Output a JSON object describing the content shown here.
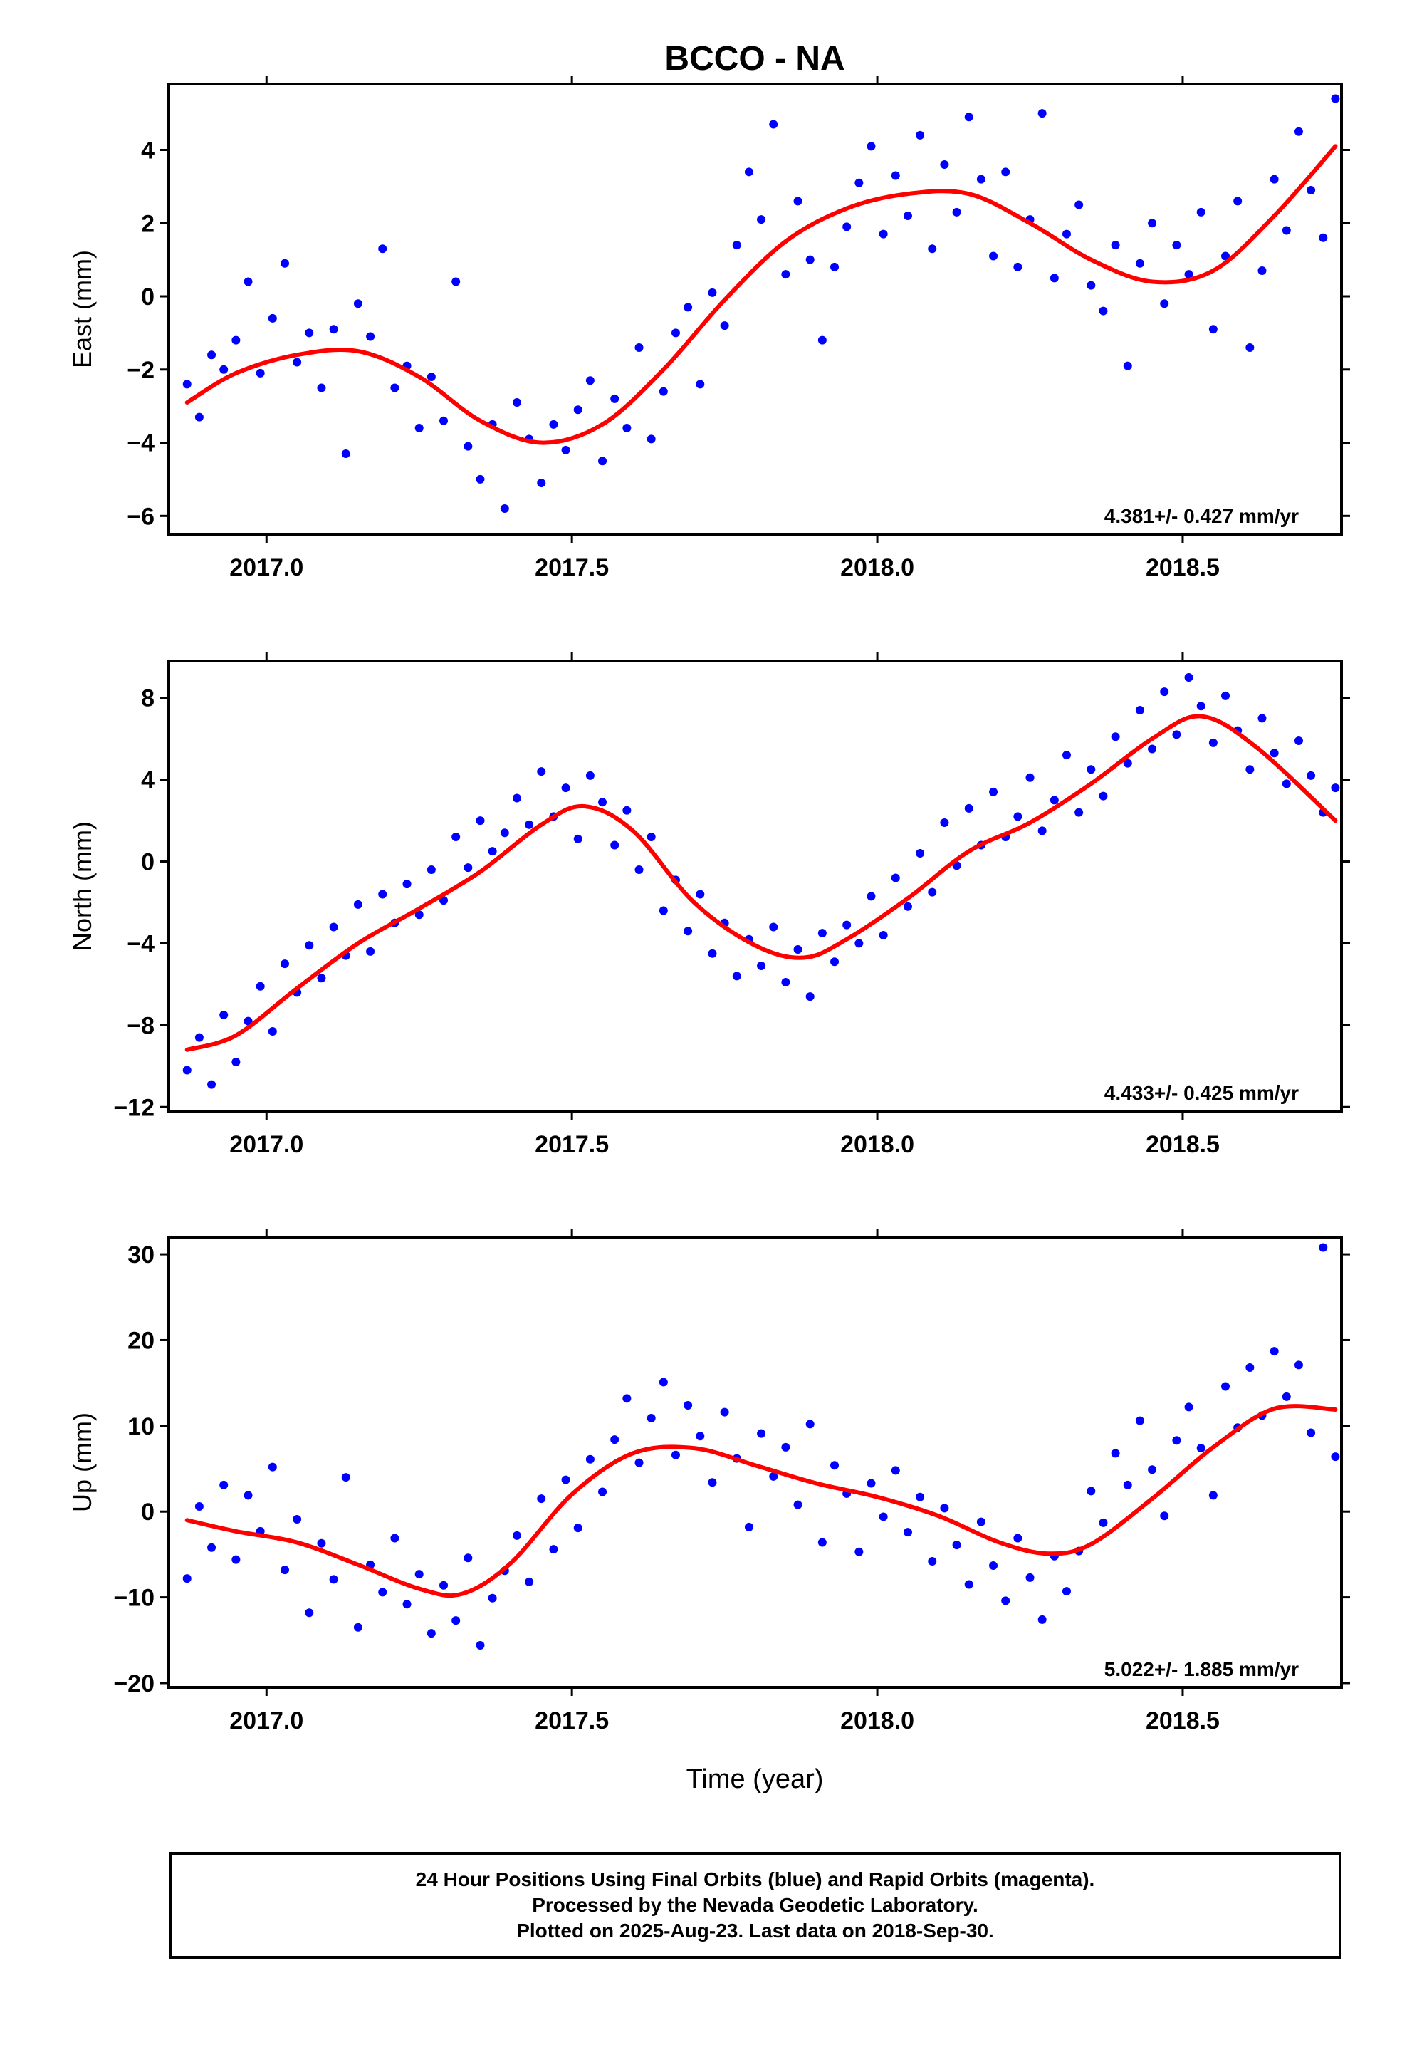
{
  "title": "BCCO - NA",
  "xlabel": "Time (year)",
  "colors": {
    "points": "#0000ff",
    "fit": "#ff0000",
    "axes": "#000000"
  },
  "footer": {
    "line1": "24 Hour Positions Using Final Orbits (blue) and Rapid Orbits (magenta).",
    "line2": "Processed by the Nevada Geodetic Laboratory.",
    "line3": "Plotted on 2025-Aug-23. Last data on 2018-Sep-30."
  },
  "chart_data": [
    {
      "type": "scatter",
      "ylabel": "East (mm)",
      "rate": "4.381+/- 0.427 mm/yr",
      "xlim": [
        2016.84,
        2018.76
      ],
      "ylim": [
        -6.5,
        5.8
      ],
      "xticks": [
        "2017.0",
        "2017.5",
        "2018.0",
        "2018.5"
      ],
      "yticks": [
        "4",
        "2",
        "0",
        "−2",
        "−4",
        "−6"
      ],
      "fit": {
        "name": "",
        "x": [
          2016.87,
          2016.95,
          2017.05,
          2017.15,
          2017.25,
          2017.35,
          2017.45,
          2017.55,
          2017.65,
          2017.75,
          2017.85,
          2017.95,
          2018.05,
          2018.15,
          2018.25,
          2018.35,
          2018.45,
          2018.55,
          2018.65,
          2018.75
        ],
        "y": [
          -2.9,
          -2.1,
          -1.6,
          -1.5,
          -2.2,
          -3.4,
          -4.0,
          -3.5,
          -2.0,
          -0.1,
          1.5,
          2.4,
          2.8,
          2.8,
          2.0,
          1.0,
          0.4,
          0.7,
          2.2,
          4.1
        ]
      },
      "points": {
        "name": "",
        "x": [
          2016.87,
          2016.89,
          2016.91,
          2016.93,
          2016.95,
          2016.97,
          2016.99,
          2017.01,
          2017.03,
          2017.05,
          2017.07,
          2017.09,
          2017.11,
          2017.13,
          2017.15,
          2017.17,
          2017.19,
          2017.21,
          2017.23,
          2017.25,
          2017.27,
          2017.29,
          2017.31,
          2017.33,
          2017.35,
          2017.37,
          2017.39,
          2017.41,
          2017.43,
          2017.45,
          2017.47,
          2017.49,
          2017.51,
          2017.53,
          2017.55,
          2017.57,
          2017.59,
          2017.61,
          2017.63,
          2017.65,
          2017.67,
          2017.69,
          2017.71,
          2017.73,
          2017.75,
          2017.77,
          2017.79,
          2017.81,
          2017.83,
          2017.85,
          2017.87,
          2017.89,
          2017.91,
          2017.93,
          2017.95,
          2017.97,
          2017.99,
          2018.01,
          2018.03,
          2018.05,
          2018.07,
          2018.09,
          2018.11,
          2018.13,
          2018.15,
          2018.17,
          2018.19,
          2018.21,
          2018.23,
          2018.25,
          2018.27,
          2018.29,
          2018.31,
          2018.33,
          2018.35,
          2018.37,
          2018.39,
          2018.41,
          2018.43,
          2018.45,
          2018.47,
          2018.49,
          2018.51,
          2018.53,
          2018.55,
          2018.57,
          2018.59,
          2018.61,
          2018.63,
          2018.65,
          2018.67,
          2018.69,
          2018.71,
          2018.73,
          2018.75
        ],
        "y": [
          -2.4,
          -3.3,
          -1.6,
          -2.0,
          -1.2,
          0.4,
          -2.1,
          -0.6,
          0.9,
          -1.8,
          -1.0,
          -2.5,
          -0.9,
          -4.3,
          -0.2,
          -1.1,
          1.3,
          -2.5,
          -1.9,
          -3.6,
          -2.2,
          -3.4,
          0.4,
          -4.1,
          -5.0,
          -3.5,
          -5.8,
          -2.9,
          -3.9,
          -5.1,
          -3.5,
          -4.2,
          -3.1,
          -2.3,
          -4.5,
          -2.8,
          -3.6,
          -1.4,
          -3.9,
          -2.6,
          -1.0,
          -0.3,
          -2.4,
          0.1,
          -0.8,
          1.4,
          3.4,
          2.1,
          4.7,
          0.6,
          2.6,
          1.0,
          -1.2,
          0.8,
          1.9,
          3.1,
          4.1,
          1.7,
          3.3,
          2.2,
          4.4,
          1.3,
          3.6,
          2.3,
          4.9,
          3.2,
          1.1,
          3.4,
          0.8,
          2.1,
          5.0,
          0.5,
          1.7,
          2.5,
          0.3,
          -0.4,
          1.4,
          -1.9,
          0.9,
          2.0,
          -0.2,
          1.4,
          0.6,
          2.3,
          -0.9,
          1.1,
          2.6,
          -1.4,
          0.7,
          3.2,
          1.8,
          4.5,
          2.9,
          1.6,
          5.4
        ]
      }
    },
    {
      "type": "scatter",
      "ylabel": "North (mm)",
      "rate": "4.433+/- 0.425 mm/yr",
      "xlim": [
        2016.84,
        2018.76
      ],
      "ylim": [
        -12.2,
        9.8
      ],
      "xticks": [
        "2017.0",
        "2017.5",
        "2018.0",
        "2018.5"
      ],
      "yticks": [
        "8",
        "4",
        "0",
        "−4",
        "−8",
        "−12"
      ],
      "fit": {
        "name": "",
        "x": [
          2016.87,
          2016.95,
          2017.05,
          2017.15,
          2017.25,
          2017.35,
          2017.45,
          2017.52,
          2017.6,
          2017.7,
          2017.8,
          2017.88,
          2017.95,
          2018.05,
          2018.15,
          2018.25,
          2018.35,
          2018.45,
          2018.53,
          2018.62,
          2018.75
        ],
        "y": [
          -9.2,
          -8.5,
          -6.2,
          -4.0,
          -2.3,
          -0.5,
          1.8,
          2.7,
          1.5,
          -2.0,
          -4.1,
          -4.7,
          -3.8,
          -1.8,
          0.5,
          1.9,
          3.8,
          6.0,
          7.1,
          5.6,
          2.0
        ]
      },
      "points": {
        "name": "",
        "x": [
          2016.87,
          2016.89,
          2016.91,
          2016.93,
          2016.95,
          2016.97,
          2016.99,
          2017.01,
          2017.03,
          2017.05,
          2017.07,
          2017.09,
          2017.11,
          2017.13,
          2017.15,
          2017.17,
          2017.19,
          2017.21,
          2017.23,
          2017.25,
          2017.27,
          2017.29,
          2017.31,
          2017.33,
          2017.35,
          2017.37,
          2017.39,
          2017.41,
          2017.43,
          2017.45,
          2017.47,
          2017.49,
          2017.51,
          2017.53,
          2017.55,
          2017.57,
          2017.59,
          2017.61,
          2017.63,
          2017.65,
          2017.67,
          2017.69,
          2017.71,
          2017.73,
          2017.75,
          2017.77,
          2017.79,
          2017.81,
          2017.83,
          2017.85,
          2017.87,
          2017.89,
          2017.91,
          2017.93,
          2017.95,
          2017.97,
          2017.99,
          2018.01,
          2018.03,
          2018.05,
          2018.07,
          2018.09,
          2018.11,
          2018.13,
          2018.15,
          2018.17,
          2018.19,
          2018.21,
          2018.23,
          2018.25,
          2018.27,
          2018.29,
          2018.31,
          2018.33,
          2018.35,
          2018.37,
          2018.39,
          2018.41,
          2018.43,
          2018.45,
          2018.47,
          2018.49,
          2018.51,
          2018.53,
          2018.55,
          2018.57,
          2018.59,
          2018.61,
          2018.63,
          2018.65,
          2018.67,
          2018.69,
          2018.71,
          2018.73,
          2018.75
        ],
        "y": [
          -10.2,
          -8.6,
          -10.9,
          -7.5,
          -9.8,
          -7.8,
          -6.1,
          -8.3,
          -5.0,
          -6.4,
          -4.1,
          -5.7,
          -3.2,
          -4.6,
          -2.1,
          -4.4,
          -1.6,
          -3.0,
          -1.1,
          -2.6,
          -0.4,
          -1.9,
          1.2,
          -0.3,
          2.0,
          0.5,
          1.4,
          3.1,
          1.8,
          4.4,
          2.2,
          3.6,
          1.1,
          4.2,
          2.9,
          0.8,
          2.5,
          -0.4,
          1.2,
          -2.4,
          -0.9,
          -3.4,
          -1.6,
          -4.5,
          -3.0,
          -5.6,
          -3.8,
          -5.1,
          -3.2,
          -5.9,
          -4.3,
          -6.6,
          -3.5,
          -4.9,
          -3.1,
          -4.0,
          -1.7,
          -3.6,
          -0.8,
          -2.2,
          0.4,
          -1.5,
          1.9,
          -0.2,
          2.6,
          0.8,
          3.4,
          1.2,
          2.2,
          4.1,
          1.5,
          3.0,
          5.2,
          2.4,
          4.5,
          3.2,
          6.1,
          4.8,
          7.4,
          5.5,
          8.3,
          6.2,
          9.0,
          7.6,
          5.8,
          8.1,
          6.4,
          4.5,
          7.0,
          5.3,
          3.8,
          5.9,
          4.2,
          2.4,
          3.6
        ]
      }
    },
    {
      "type": "scatter",
      "ylabel": "Up (mm)",
      "rate": "5.022+/- 1.885 mm/yr",
      "xlim": [
        2016.84,
        2018.76
      ],
      "ylim": [
        -20.5,
        32
      ],
      "xticks": [
        "2017.0",
        "2017.5",
        "2018.0",
        "2018.5"
      ],
      "yticks": [
        "30",
        "20",
        "10",
        "0",
        "−10",
        "−20"
      ],
      "fit": {
        "name": "",
        "x": [
          2016.87,
          2016.95,
          2017.05,
          2017.15,
          2017.25,
          2017.32,
          2017.4,
          2017.5,
          2017.6,
          2017.7,
          2017.8,
          2017.9,
          2018.0,
          2018.1,
          2018.2,
          2018.28,
          2018.35,
          2018.45,
          2018.55,
          2018.65,
          2018.75
        ],
        "y": [
          -1.0,
          -2.3,
          -3.6,
          -6.2,
          -9.0,
          -9.6,
          -6.0,
          2.0,
          6.8,
          7.4,
          5.4,
          3.3,
          1.7,
          -0.5,
          -3.6,
          -4.9,
          -3.8,
          1.5,
          7.5,
          12.0,
          11.9
        ]
      },
      "points": {
        "name": "",
        "x": [
          2016.87,
          2016.89,
          2016.91,
          2016.93,
          2016.95,
          2016.97,
          2016.99,
          2017.01,
          2017.03,
          2017.05,
          2017.07,
          2017.09,
          2017.11,
          2017.13,
          2017.15,
          2017.17,
          2017.19,
          2017.21,
          2017.23,
          2017.25,
          2017.27,
          2017.29,
          2017.31,
          2017.33,
          2017.35,
          2017.37,
          2017.39,
          2017.41,
          2017.43,
          2017.45,
          2017.47,
          2017.49,
          2017.51,
          2017.53,
          2017.55,
          2017.57,
          2017.59,
          2017.61,
          2017.63,
          2017.65,
          2017.67,
          2017.69,
          2017.71,
          2017.73,
          2017.75,
          2017.77,
          2017.79,
          2017.81,
          2017.83,
          2017.85,
          2017.87,
          2017.89,
          2017.91,
          2017.93,
          2017.95,
          2017.97,
          2017.99,
          2018.01,
          2018.03,
          2018.05,
          2018.07,
          2018.09,
          2018.11,
          2018.13,
          2018.15,
          2018.17,
          2018.19,
          2018.21,
          2018.23,
          2018.25,
          2018.27,
          2018.29,
          2018.31,
          2018.33,
          2018.35,
          2018.37,
          2018.39,
          2018.41,
          2018.43,
          2018.45,
          2018.47,
          2018.49,
          2018.51,
          2018.53,
          2018.55,
          2018.57,
          2018.59,
          2018.61,
          2018.63,
          2018.65,
          2018.67,
          2018.69,
          2018.71,
          2018.73,
          2018.75
        ],
        "y": [
          -7.8,
          0.6,
          -4.2,
          3.1,
          -5.6,
          1.9,
          -2.3,
          5.2,
          -6.8,
          -0.9,
          -11.8,
          -3.7,
          -7.9,
          4.0,
          -13.5,
          -6.2,
          -9.4,
          -3.1,
          -10.8,
          -7.3,
          -14.2,
          -8.6,
          -12.7,
          -5.4,
          -15.6,
          -10.1,
          -6.9,
          -2.8,
          -8.2,
          1.5,
          -4.4,
          3.7,
          -1.9,
          6.1,
          2.3,
          8.4,
          13.2,
          5.7,
          10.9,
          15.1,
          6.6,
          12.4,
          8.8,
          3.4,
          11.6,
          6.2,
          -1.8,
          9.1,
          4.1,
          7.5,
          0.8,
          10.2,
          -3.6,
          5.4,
          2.1,
          -4.7,
          3.3,
          -0.6,
          4.8,
          -2.4,
          1.7,
          -5.8,
          0.4,
          -3.9,
          -8.5,
          -1.2,
          -6.3,
          -10.4,
          -3.1,
          -7.7,
          -12.6,
          -5.2,
          -9.3,
          -4.6,
          2.4,
          -1.3,
          6.8,
          3.1,
          10.6,
          4.9,
          -0.5,
          8.3,
          12.2,
          7.4,
          1.9,
          14.6,
          9.8,
          16.8,
          11.2,
          18.7,
          13.4,
          17.1,
          9.2,
          30.8,
          6.4
        ]
      }
    }
  ]
}
